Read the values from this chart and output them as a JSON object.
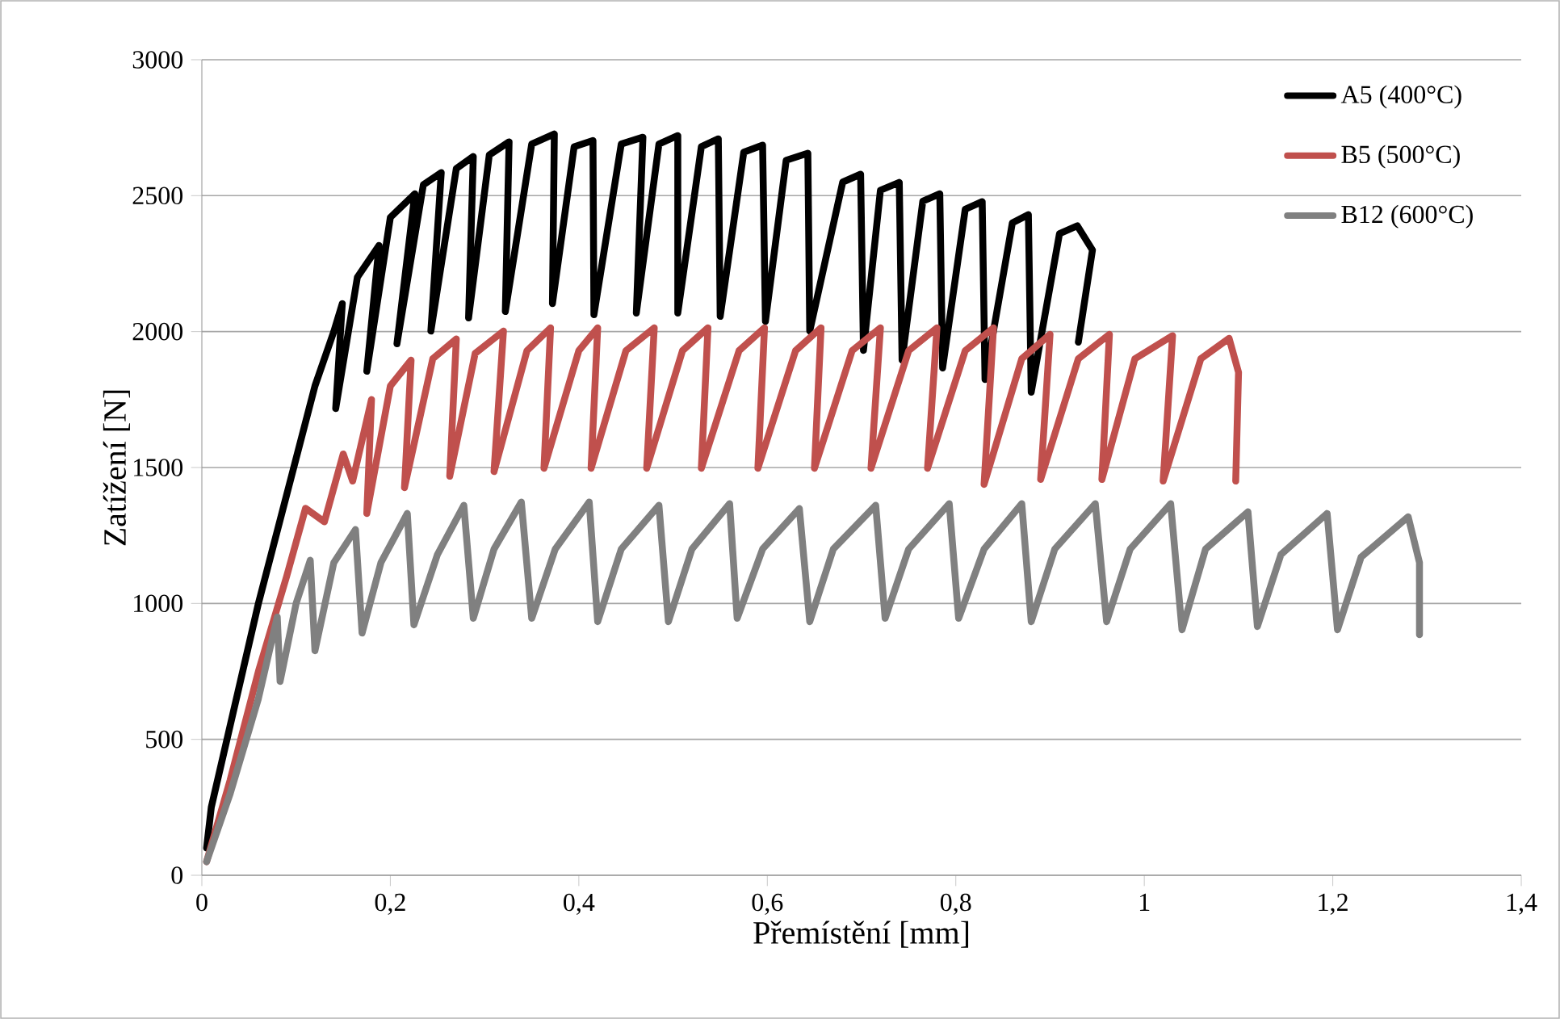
{
  "chart_data": {
    "type": "line",
    "xlabel": "Přemístění   [mm]",
    "ylabel": "Zatížení [N]",
    "xlim": [
      0,
      1.4
    ],
    "ylim": [
      0,
      3000
    ],
    "xticks": [
      0,
      {
        "value": 0.2,
        "label": "0,2"
      },
      {
        "value": 0.4,
        "label": "0,4"
      },
      {
        "value": 0.6,
        "label": "0,6"
      },
      {
        "value": 0.8,
        "label": "0,8"
      },
      1,
      {
        "value": 1.2,
        "label": "1,2"
      },
      {
        "value": 1.4,
        "label": "1,4"
      }
    ],
    "yticks": [
      0,
      500,
      1000,
      1500,
      2000,
      2500,
      3000
    ],
    "grid": "y",
    "legend": "top right",
    "series": [
      {
        "name": "A5 (400°C)",
        "color": "#000000",
        "x": [
          0.005,
          0.01,
          0.03,
          0.06,
          0.09,
          0.12,
          0.14,
          0.149,
          0.142,
          0.165,
          0.188,
          0.175,
          0.2,
          0.226,
          0.207,
          0.235,
          0.254,
          0.243,
          0.27,
          0.288,
          0.283,
          0.305,
          0.326,
          0.322,
          0.35,
          0.374,
          0.372,
          0.395,
          0.415,
          0.416,
          0.445,
          0.468,
          0.461,
          0.485,
          0.505,
          0.505,
          0.53,
          0.548,
          0.55,
          0.575,
          0.595,
          0.598,
          0.62,
          0.643,
          0.645,
          0.68,
          0.699,
          0.702,
          0.72,
          0.74,
          0.743,
          0.765,
          0.783,
          0.786,
          0.81,
          0.828,
          0.831,
          0.86,
          0.877,
          0.88,
          0.91,
          0.929,
          0.945,
          0.93
        ],
        "values": [
          100,
          250,
          550,
          1000,
          1400,
          1800,
          2000,
          2103,
          1717,
          2200,
          2317,
          1854,
          2420,
          2507,
          1955,
          2540,
          2585,
          2002,
          2600,
          2644,
          2050,
          2650,
          2698,
          2074,
          2690,
          2727,
          2103,
          2680,
          2703,
          2062,
          2690,
          2715,
          2068,
          2690,
          2721,
          2068,
          2680,
          2709,
          2056,
          2660,
          2686,
          2038,
          2630,
          2656,
          2002,
          2550,
          2579,
          1931,
          2520,
          2549,
          1895,
          2480,
          2507,
          1866,
          2450,
          2478,
          1824,
          2400,
          2430,
          1777,
          2360,
          2389,
          2300,
          1961
        ]
      },
      {
        "name": "B5 (500°C)",
        "color": "#c0504d",
        "x": [
          0.005,
          0.03,
          0.06,
          0.09,
          0.11,
          0.13,
          0.15,
          0.16,
          0.18,
          0.175,
          0.2,
          0.222,
          0.215,
          0.245,
          0.27,
          0.263,
          0.29,
          0.32,
          0.31,
          0.345,
          0.37,
          0.363,
          0.4,
          0.42,
          0.413,
          0.45,
          0.48,
          0.472,
          0.51,
          0.537,
          0.53,
          0.57,
          0.597,
          0.59,
          0.63,
          0.657,
          0.65,
          0.69,
          0.72,
          0.71,
          0.75,
          0.78,
          0.77,
          0.81,
          0.84,
          0.83,
          0.87,
          0.9,
          0.89,
          0.93,
          0.963,
          0.955,
          0.99,
          1.03,
          1.02,
          1.06,
          1.09,
          1.1,
          1.097
        ],
        "values": [
          50,
          350,
          750,
          1100,
          1350,
          1300,
          1550,
          1450,
          1750,
          1331,
          1800,
          1895,
          1426,
          1900,
          1973,
          1468,
          1920,
          2002,
          1485,
          1930,
          2014,
          1497,
          1930,
          2014,
          1497,
          1930,
          2014,
          1497,
          1930,
          2014,
          1497,
          1930,
          2014,
          1497,
          1930,
          2014,
          1497,
          1930,
          2014,
          1497,
          1930,
          2014,
          1497,
          1930,
          2014,
          1438,
          1900,
          1990,
          1456,
          1900,
          1990,
          1456,
          1900,
          1985,
          1450,
          1900,
          1975,
          1850,
          1450
        ]
      },
      {
        "name": "B12 (600°C)",
        "color": "#808080",
        "x": [
          0.005,
          0.03,
          0.06,
          0.08,
          0.083,
          0.1,
          0.115,
          0.12,
          0.14,
          0.163,
          0.17,
          0.19,
          0.218,
          0.225,
          0.25,
          0.278,
          0.288,
          0.31,
          0.339,
          0.35,
          0.375,
          0.411,
          0.42,
          0.445,
          0.485,
          0.495,
          0.52,
          0.56,
          0.568,
          0.595,
          0.634,
          0.645,
          0.67,
          0.715,
          0.725,
          0.75,
          0.793,
          0.803,
          0.83,
          0.87,
          0.88,
          0.905,
          0.948,
          0.96,
          0.985,
          1.028,
          1.04,
          1.065,
          1.11,
          1.12,
          1.145,
          1.194,
          1.205,
          1.23,
          1.28,
          1.292,
          1.292
        ],
        "values": [
          50,
          300,
          650,
          950,
          713,
          1000,
          1159,
          826,
          1150,
          1272,
          891,
          1150,
          1331,
          921,
          1180,
          1361,
          945,
          1200,
          1373,
          945,
          1200,
          1373,
          933,
          1200,
          1361,
          933,
          1200,
          1367,
          945,
          1200,
          1349,
          933,
          1200,
          1361,
          945,
          1200,
          1367,
          945,
          1200,
          1367,
          933,
          1200,
          1367,
          933,
          1200,
          1367,
          903,
          1200,
          1337,
          915,
          1180,
          1331,
          903,
          1170,
          1319,
          1150,
          885
        ]
      }
    ]
  }
}
